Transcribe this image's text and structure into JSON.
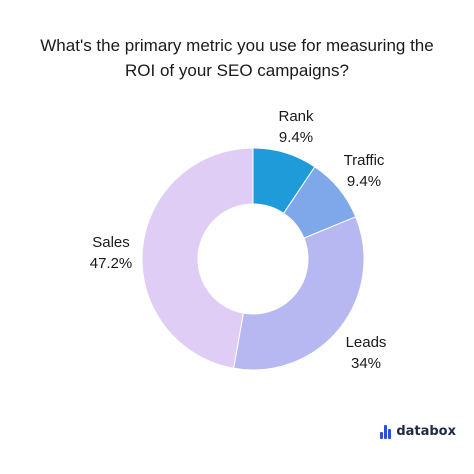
{
  "chart_data": {
    "type": "pie",
    "title_lines": [
      "What's the primary metric you use for measuring the",
      "ROI of your SEO campaigns?"
    ],
    "donut": true,
    "slices": [
      {
        "label": "Rank",
        "value": 9.4,
        "value_label": "9.4%",
        "color": "#1f9bd9"
      },
      {
        "label": "Traffic",
        "value": 9.4,
        "value_label": "9.4%",
        "color": "#7ea8ea"
      },
      {
        "label": "Leads",
        "value": 34,
        "value_label": "34%",
        "color": "#b7b8f2"
      },
      {
        "label": "Sales",
        "value": 47.2,
        "value_label": "47.2%",
        "color": "#dfcdf6"
      }
    ]
  },
  "brand": {
    "name": "databox",
    "icon": "databox-logo-icon",
    "color": "#2c4de0"
  }
}
